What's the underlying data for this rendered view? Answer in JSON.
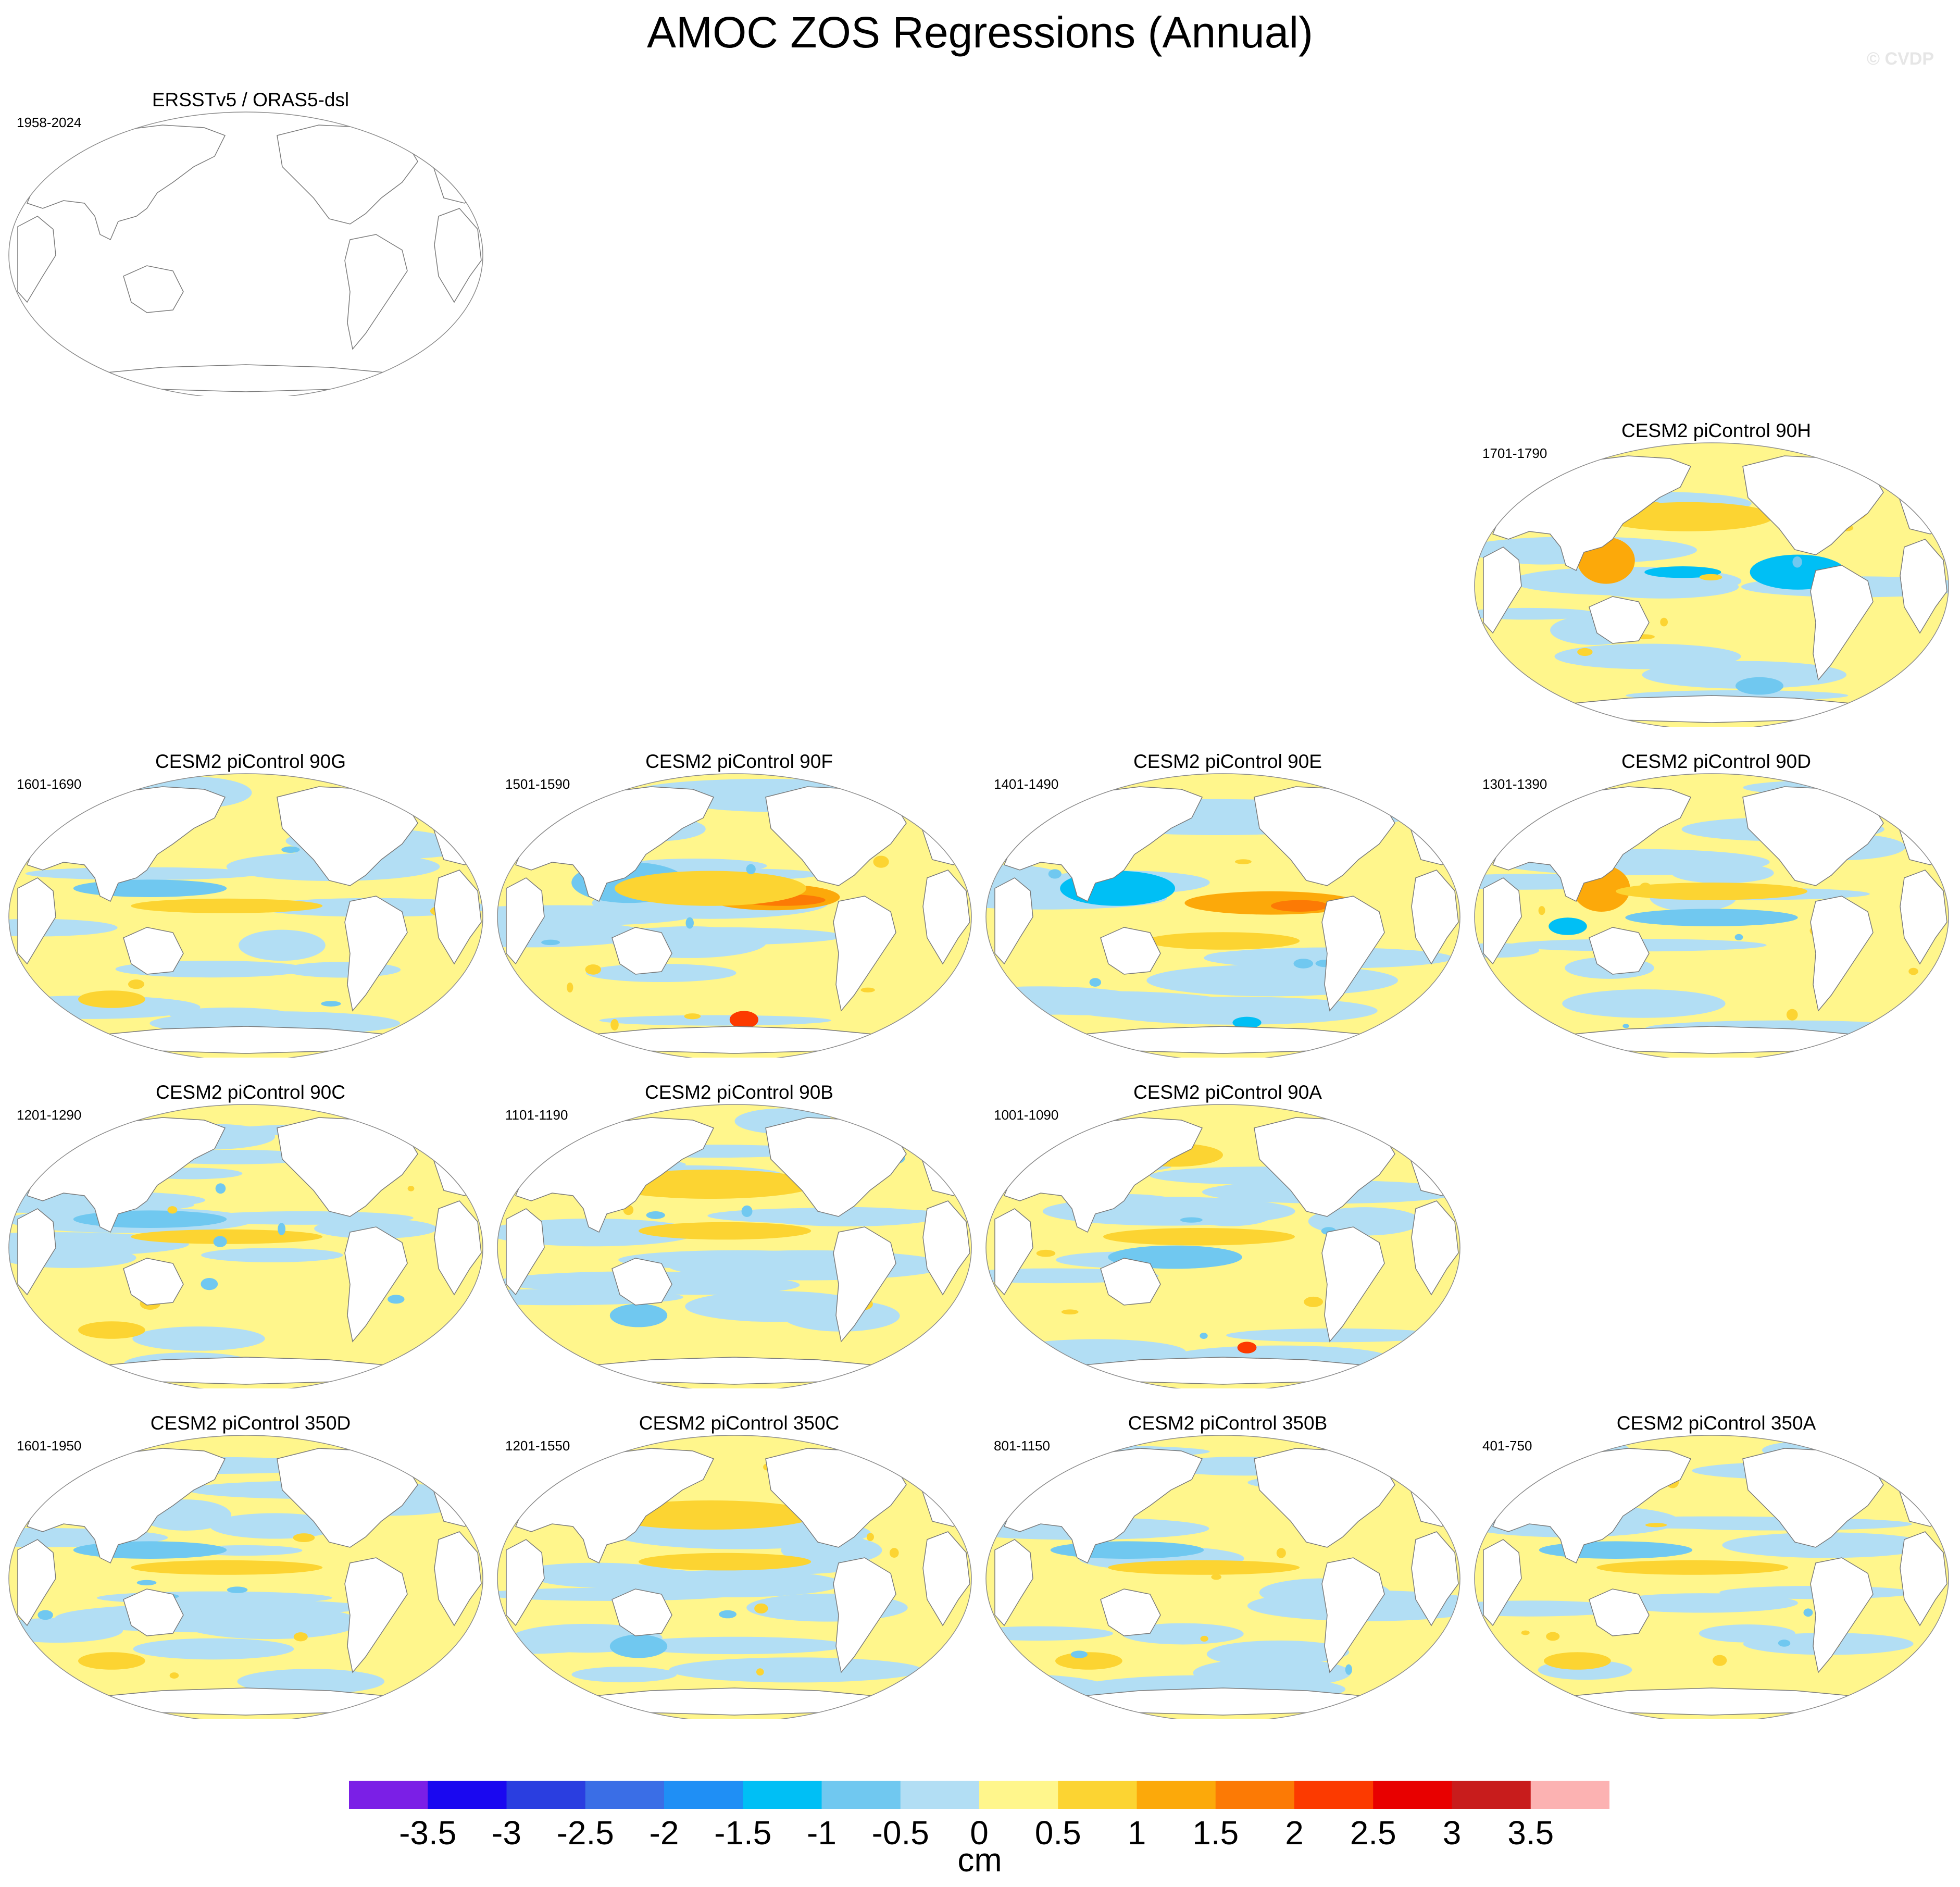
{
  "title": "AMOC ZOS Regressions (Annual)",
  "watermark": "© CVDP",
  "chart_data": {
    "type": "heatmap",
    "title": "AMOC ZOS Regressions (Annual)",
    "projection": "Robinson (Pacific-centered)",
    "colorbar": {
      "unit": "cm",
      "levels": [
        -3.5,
        -3,
        -2.5,
        -2,
        -1.5,
        -1,
        -0.5,
        0,
        0.5,
        1,
        1.5,
        2,
        2.5,
        3,
        3.5
      ],
      "labels": [
        "-3.5",
        "-3",
        "-2.5",
        "-2",
        "-1.5",
        "-1",
        "-0.5",
        "0",
        "0.5",
        "1",
        "1.5",
        "2",
        "2.5",
        "3",
        "3.5"
      ],
      "colors": [
        "#7b1fe6",
        "#1a08f0",
        "#2a3ee0",
        "#3a6ee6",
        "#1f8ff5",
        "#00bff5",
        "#70c8f0",
        "#b2def4",
        "#fff68c",
        "#fcd432",
        "#fca90a",
        "#fc7a05",
        "#fc3a00",
        "#e80000",
        "#c81c1c",
        "#fcb2b2"
      ]
    },
    "panels": [
      {
        "title": "ERSSTv5 / ORAS5-dsl",
        "years": "1958-2024",
        "row": 0,
        "col": 0,
        "pattern": "empty",
        "seed": 1
      },
      {
        "title": "CESM2 piControl 90H",
        "years": "1701-1790",
        "row": 1,
        "col": 3,
        "pattern": "enso_neg",
        "seed": 2
      },
      {
        "title": "CESM2 piControl 90G",
        "years": "1601-1690",
        "row": 2,
        "col": 0,
        "pattern": "natl",
        "seed": 3
      },
      {
        "title": "CESM2 piControl 90F",
        "years": "1501-1590",
        "row": 2,
        "col": 1,
        "pattern": "enso_pos",
        "seed": 4
      },
      {
        "title": "CESM2 piControl 90E",
        "years": "1401-1490",
        "row": 2,
        "col": 2,
        "pattern": "enso_strong",
        "seed": 5
      },
      {
        "title": "CESM2 piControl 90D",
        "years": "1301-1390",
        "row": 2,
        "col": 3,
        "pattern": "wpac",
        "seed": 6
      },
      {
        "title": "CESM2 piControl 90C",
        "years": "1201-1290",
        "row": 3,
        "col": 0,
        "pattern": "natl",
        "seed": 7
      },
      {
        "title": "CESM2 piControl 90B",
        "years": "1101-1190",
        "row": 3,
        "col": 1,
        "pattern": "natl_strong",
        "seed": 8
      },
      {
        "title": "CESM2 piControl 90A",
        "years": "1001-1090",
        "row": 3,
        "col": 2,
        "pattern": "mixed",
        "seed": 9
      },
      {
        "title": "CESM2 piControl 350D",
        "years": "1601-1950",
        "row": 4,
        "col": 0,
        "pattern": "natl",
        "seed": 10
      },
      {
        "title": "CESM2 piControl 350C",
        "years": "1201-1550",
        "row": 4,
        "col": 1,
        "pattern": "natl_strong",
        "seed": 11
      },
      {
        "title": "CESM2 piControl 350B",
        "years": "801-1150",
        "row": 4,
        "col": 2,
        "pattern": "natl",
        "seed": 12
      },
      {
        "title": "CESM2 piControl 350A",
        "years": "401-750",
        "row": 4,
        "col": 3,
        "pattern": "natl",
        "seed": 13
      }
    ]
  }
}
